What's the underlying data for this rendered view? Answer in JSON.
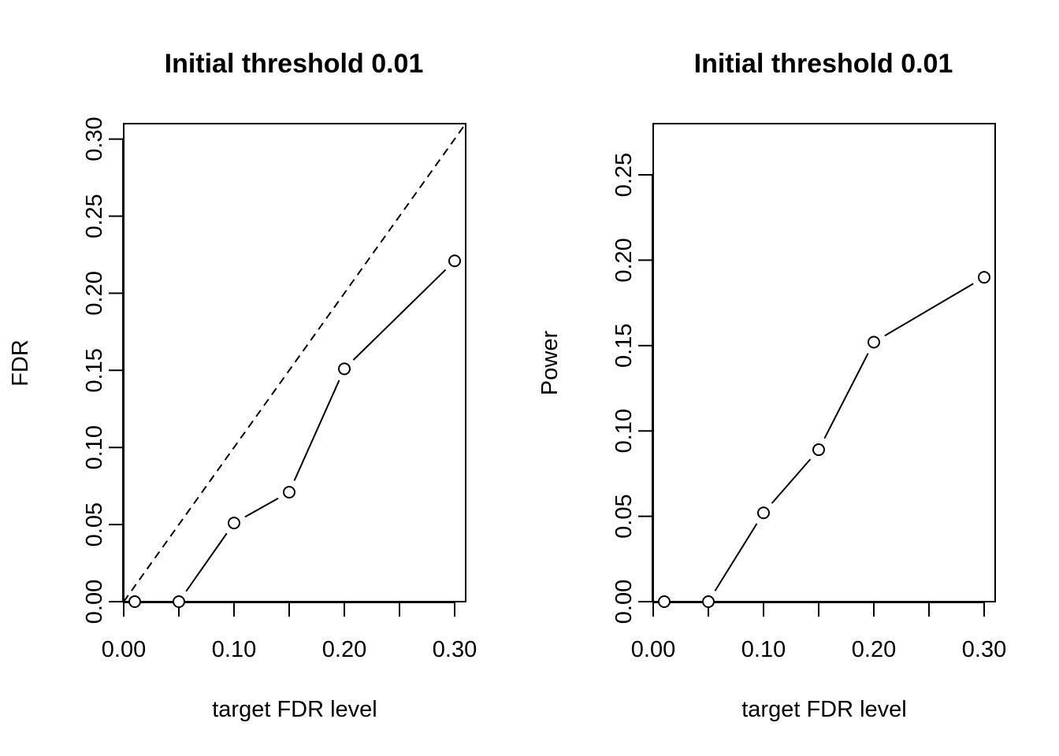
{
  "chart_data": [
    {
      "type": "line",
      "title": "Initial threshold 0.01",
      "xlabel": "target FDR level",
      "ylabel": "FDR",
      "xlim": [
        0,
        0.31
      ],
      "ylim": [
        0,
        0.31
      ],
      "x_ticks": [
        "0.00",
        "0.10",
        "0.20",
        "0.30"
      ],
      "x_tick_values": [
        0,
        0.05,
        0.1,
        0.15,
        0.2,
        0.25,
        0.3
      ],
      "y_ticks": [
        "0.00",
        "0.05",
        "0.10",
        "0.15",
        "0.20",
        "0.25",
        "0.30"
      ],
      "grid": false,
      "reference_line": {
        "style": "dashed",
        "slope": 1,
        "intercept": 0
      },
      "series": [
        {
          "x": [
            0.01,
            0.05,
            0.1,
            0.15,
            0.2,
            0.3
          ],
          "y": [
            0.0,
            0.0,
            0.051,
            0.071,
            0.151,
            0.221
          ]
        }
      ]
    },
    {
      "type": "line",
      "title": "Initial threshold 0.01",
      "xlabel": "target FDR level",
      "ylabel": "Power",
      "xlim": [
        0,
        0.31
      ],
      "ylim": [
        0,
        0.28
      ],
      "x_ticks": [
        "0.00",
        "0.10",
        "0.20",
        "0.30"
      ],
      "x_tick_values": [
        0,
        0.05,
        0.1,
        0.15,
        0.2,
        0.25,
        0.3
      ],
      "y_ticks": [
        "0.00",
        "0.05",
        "0.10",
        "0.15",
        "0.20",
        "0.25"
      ],
      "grid": false,
      "series": [
        {
          "x": [
            0.01,
            0.05,
            0.1,
            0.15,
            0.2,
            0.3
          ],
          "y": [
            0.0,
            0.0,
            0.052,
            0.089,
            0.152,
            0.19
          ]
        }
      ]
    }
  ]
}
